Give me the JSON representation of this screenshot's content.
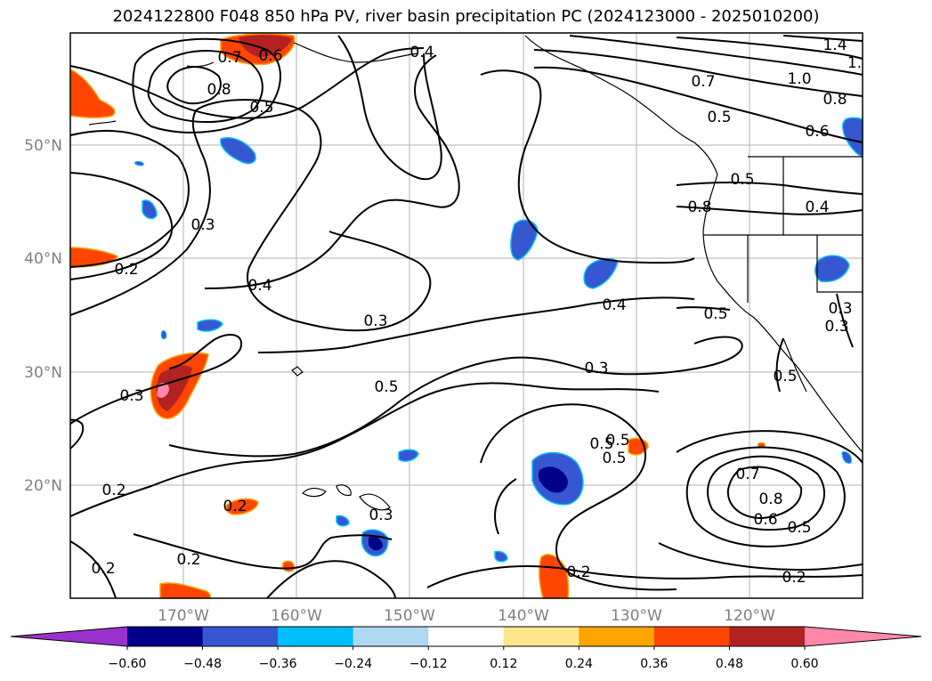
{
  "title": "2024122800 F048 850 hPa PV, river basin precipitation PC (2024123000 - 2025010200)",
  "map": {
    "lat_labels": [
      "50°N",
      "40°N",
      "30°N",
      "20°N"
    ],
    "lon_labels": [
      "170°W",
      "160°W",
      "150°W",
      "140°W",
      "130°W",
      "120°W"
    ],
    "contour_labels": [
      "0.4",
      "1.4",
      "1.",
      "1.0",
      "0.7",
      "0.8",
      "0.5",
      "0.6",
      "0.7",
      "0.6",
      "0.8",
      "0.5",
      "0.3",
      "0.4",
      "0.2",
      "0.4",
      "0.3",
      "0.5",
      "0.3",
      "0.5",
      "0.3",
      "0.5",
      "0.4",
      "0.3",
      "0.2",
      "0.2",
      "0.2",
      "0.2",
      "0.5",
      "0.7",
      "0.8",
      "0.6",
      "0.5",
      "0.2",
      "0.2",
      "0.5",
      "0.8",
      "0.5",
      "0.3",
      "0.5",
      "0.3"
    ]
  },
  "colorbar": {
    "ticks": [
      "−0.60",
      "−0.48",
      "−0.36",
      "−0.24",
      "−0.12",
      "0.12",
      "0.24",
      "0.36",
      "0.48",
      "0.60"
    ],
    "colors": [
      "#9932cc",
      "#00008b",
      "#3657cf",
      "#00bfff",
      "#add8f0",
      "#ffffff",
      "#ffe68c",
      "#ffa500",
      "#ff4500",
      "#b22222",
      "#ff88aa",
      "#ff88aa"
    ]
  },
  "colors": {
    "grid": "#b0b0b0",
    "contour": "#000000",
    "neg_light": "#add8f0",
    "neg_mid": "#00bfff",
    "neg_dark": "#3657cf",
    "neg_darkest": "#00008b",
    "pos_light": "#ffe68c",
    "pos_mid": "#ffa500",
    "pos_strong": "#ff4500",
    "pos_darker": "#b22222",
    "pos_max": "#ff88aa"
  }
}
